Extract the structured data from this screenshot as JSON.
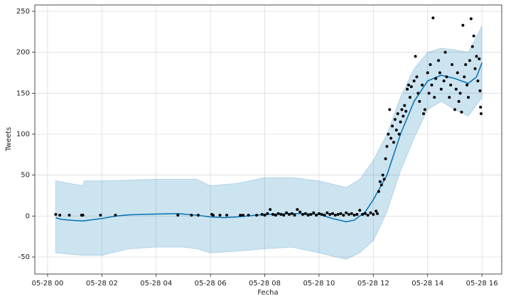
{
  "chart_data": {
    "type": "forecast",
    "x_label": "Fecha",
    "y_label": "Tweets",
    "xlim": [
      -0.47,
      16.73
    ],
    "ylim": [
      -70.8,
      257.8
    ],
    "xticks": [
      {
        "value": 0,
        "label": "05-28 00"
      },
      {
        "value": 2,
        "label": "05-28 02"
      },
      {
        "value": 4,
        "label": "05-28 04"
      },
      {
        "value": 6,
        "label": "05-28 06"
      },
      {
        "value": 8,
        "label": "05-28 08"
      },
      {
        "value": 10,
        "label": "05-28 10"
      },
      {
        "value": 12,
        "label": "05-28 12"
      },
      {
        "value": 14,
        "label": "05-28 14"
      },
      {
        "value": 16,
        "label": "05-28 16"
      }
    ],
    "yticks": [
      -50,
      0,
      50,
      100,
      150,
      200,
      250
    ],
    "grid": true,
    "series": [
      {
        "type": "area",
        "color": "#0072B2",
        "x": [
          0.3,
          1.3,
          1.35,
          2,
          3,
          4,
          5,
          5.5,
          6,
          7,
          8,
          9,
          10,
          11,
          11.5,
          12,
          12.5,
          13,
          13.5,
          14,
          14.5,
          15,
          15.5,
          16
        ],
        "upper": [
          43,
          37,
          43,
          43,
          44,
          45,
          45,
          45,
          37,
          40,
          47,
          47,
          43,
          35,
          45,
          68,
          100,
          145,
          180,
          200,
          205,
          203,
          200,
          232
        ],
        "lower": [
          -45,
          -48,
          -48,
          -48,
          -40,
          -38,
          -38,
          -40,
          -45,
          -43,
          -40,
          -38,
          -45,
          -53,
          -45,
          -30,
          5,
          55,
          95,
          130,
          140,
          130,
          122,
          145
        ]
      },
      {
        "type": "line",
        "color": "#0072B2",
        "x": [
          0.3,
          0.5,
          1,
          1.3,
          2,
          2.5,
          3,
          4,
          4.8,
          5.5,
          6,
          6.5,
          7,
          8,
          9,
          9.5,
          10,
          10.5,
          11,
          11.3,
          11.7,
          12,
          12.5,
          13,
          13.5,
          14,
          14.5,
          15,
          15.5,
          15.8,
          16
        ],
        "values": [
          -2,
          -4,
          -5.5,
          -6,
          -3,
          0,
          1.5,
          2.5,
          3,
          1,
          -1,
          -2,
          -1,
          2,
          3,
          3,
          2,
          -3,
          -7,
          -5,
          5,
          20,
          50,
          100,
          140,
          165,
          172,
          168,
          162,
          170,
          187
        ]
      },
      {
        "type": "scatter",
        "color": "#000000",
        "x": [
          0.3,
          0.45,
          0.8,
          1.25,
          1.3,
          1.95,
          2.5,
          4.8,
          5.3,
          5.55,
          6.05,
          6.1,
          6.35,
          6.6,
          7.1,
          7.2,
          7.4,
          7.7,
          7.9,
          8.0,
          8.1,
          8.2,
          8.3,
          8.4,
          8.5,
          8.6,
          8.7,
          8.8,
          8.9,
          9.0,
          9.1,
          9.2,
          9.3,
          9.4,
          9.5,
          9.6,
          9.7,
          9.8,
          9.9,
          10.0,
          10.1,
          10.2,
          10.3,
          10.4,
          10.5,
          10.6,
          10.7,
          10.8,
          10.9,
          11.0,
          11.1,
          11.2,
          11.3,
          11.4,
          11.5,
          11.6,
          11.7,
          11.8,
          11.9,
          12.0,
          12.1,
          12.15,
          12.2,
          12.25,
          12.3,
          12.35,
          12.4,
          12.45,
          12.5,
          12.55,
          12.6,
          12.65,
          12.7,
          12.75,
          12.8,
          12.85,
          12.9,
          12.95,
          13.0,
          13.05,
          13.1,
          13.15,
          13.2,
          13.25,
          13.3,
          13.35,
          13.4,
          13.5,
          13.55,
          13.6,
          13.65,
          13.7,
          13.8,
          13.85,
          13.9,
          14.0,
          14.05,
          14.1,
          14.15,
          14.2,
          14.25,
          14.3,
          14.4,
          14.45,
          14.5,
          14.6,
          14.65,
          14.7,
          14.8,
          14.85,
          14.9,
          15.0,
          15.05,
          15.1,
          15.15,
          15.2,
          15.25,
          15.3,
          15.35,
          15.4,
          15.45,
          15.5,
          15.55,
          15.6,
          15.65,
          15.7,
          15.75,
          15.8,
          15.85,
          15.9,
          15.93,
          15.95,
          15.97
        ],
        "values": [
          2,
          1,
          1,
          1,
          1,
          1,
          1,
          1,
          1,
          1,
          2,
          1,
          1,
          1,
          1,
          1,
          1,
          1,
          2,
          1,
          3,
          8,
          2,
          1,
          3,
          2,
          1,
          4,
          2,
          3,
          1,
          8,
          5,
          2,
          3,
          1,
          2,
          4,
          1,
          3,
          2,
          1,
          4,
          2,
          3,
          1,
          2,
          3,
          1,
          4,
          2,
          3,
          1,
          2,
          7,
          2,
          3,
          1,
          4,
          2,
          6,
          3,
          30,
          42,
          38,
          50,
          45,
          70,
          85,
          100,
          130,
          95,
          110,
          90,
          118,
          105,
          125,
          100,
          115,
          130,
          122,
          135,
          128,
          155,
          160,
          145,
          158,
          165,
          195,
          170,
          150,
          140,
          160,
          125,
          130,
          175,
          150,
          185,
          160,
          242,
          145,
          168,
          190,
          175,
          155,
          165,
          200,
          170,
          145,
          160,
          185,
          130,
          155,
          175,
          140,
          150,
          127,
          233,
          170,
          185,
          160,
          145,
          190,
          241,
          207,
          220,
          180,
          195,
          165,
          192,
          153,
          133,
          125
        ]
      }
    ]
  }
}
